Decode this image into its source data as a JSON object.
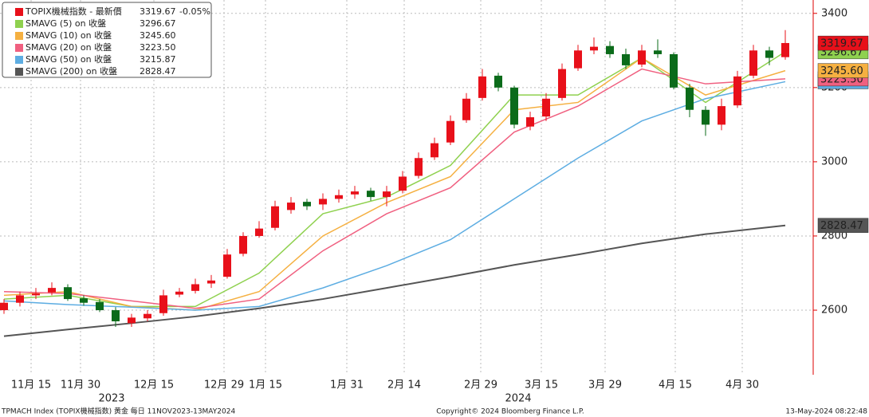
{
  "chart_data": {
    "type": "candlestick",
    "main": {
      "name": "TOPIX機械指数 - 最新價",
      "color": "#e8101a",
      "last": 3319.67,
      "change": "-0.05%"
    },
    "up_color": "#e8101a",
    "down_color": "#0b6b1a",
    "x": [
      0,
      1,
      2,
      3,
      4,
      5,
      6,
      7,
      8,
      9,
      10,
      11,
      12,
      13,
      14,
      15,
      16,
      17,
      18,
      19,
      20,
      21,
      22,
      23,
      24,
      25,
      26,
      27,
      28,
      29,
      30,
      31,
      32,
      33,
      34,
      35,
      36,
      37,
      38,
      39,
      40,
      41,
      42,
      43,
      44,
      45,
      46,
      47,
      48,
      49
    ],
    "open": [
      2600,
      2620,
      2640,
      2648,
      2662,
      2632,
      2622,
      2600,
      2565,
      2578,
      2592,
      2642,
      2652,
      2672,
      2690,
      2752,
      2800,
      2822,
      2870,
      2892,
      2885,
      2900,
      2912,
      2922,
      2905,
      2922,
      2962,
      3012,
      3052,
      3112,
      3172,
      3232,
      3200,
      3095,
      3122,
      3172,
      3252,
      3300,
      3312,
      3290,
      3262,
      3300,
      3290,
      3200,
      3140,
      3100,
      3152,
      3232,
      3300,
      3282
    ],
    "high": [
      2630,
      2650,
      2660,
      2675,
      2670,
      2640,
      2630,
      2608,
      2590,
      2600,
      2655,
      2660,
      2685,
      2695,
      2765,
      2810,
      2840,
      2895,
      2905,
      2900,
      2915,
      2925,
      2935,
      2930,
      2935,
      2975,
      3025,
      3065,
      3125,
      3185,
      3250,
      3240,
      3205,
      3135,
      3185,
      3265,
      3315,
      3335,
      3325,
      3305,
      3315,
      3330,
      3295,
      3210,
      3150,
      3170,
      3245,
      3315,
      3310,
      3355
    ],
    "low": [
      2590,
      2610,
      2630,
      2640,
      2625,
      2612,
      2595,
      2555,
      2555,
      2570,
      2585,
      2635,
      2645,
      2660,
      2685,
      2745,
      2795,
      2815,
      2860,
      2870,
      2870,
      2890,
      2900,
      2895,
      2880,
      2915,
      2955,
      3005,
      3045,
      3105,
      3165,
      3190,
      3090,
      3085,
      3110,
      3165,
      3245,
      3290,
      3280,
      3250,
      3255,
      3280,
      3195,
      3120,
      3070,
      3085,
      3145,
      3225,
      3260,
      3275
    ],
    "close": [
      2620,
      2640,
      2645,
      2660,
      2630,
      2620,
      2600,
      2570,
      2580,
      2590,
      2640,
      2650,
      2670,
      2680,
      2750,
      2800,
      2820,
      2880,
      2890,
      2880,
      2900,
      2910,
      2920,
      2905,
      2920,
      2960,
      3010,
      3050,
      3110,
      3170,
      3230,
      3200,
      3100,
      3120,
      3170,
      3250,
      3300,
      3310,
      3290,
      3260,
      3300,
      3290,
      3200,
      3140,
      3100,
      3150,
      3230,
      3300,
      3280,
      3320
    ],
    "series": [
      {
        "name": "SMAVG (5)  on 收盤",
        "color": "#8fd14f",
        "last": 3296.67,
        "last_label": "3296.67",
        "x": [
          0,
          4,
          8,
          12,
          16,
          20,
          24,
          28,
          32,
          36,
          40,
          44,
          49
        ],
        "values": [
          2630,
          2640,
          2610,
          2610,
          2700,
          2860,
          2905,
          2990,
          3180,
          3180,
          3280,
          3160,
          3296.67
        ]
      },
      {
        "name": "SMAVG (10)  on 收盤",
        "color": "#f5b041",
        "last": 3245.6,
        "last_label": "3245.60",
        "x": [
          0,
          4,
          8,
          12,
          16,
          20,
          24,
          28,
          32,
          36,
          40,
          44,
          49
        ],
        "values": [
          2640,
          2650,
          2610,
          2600,
          2650,
          2800,
          2890,
          2960,
          3140,
          3160,
          3280,
          3180,
          3245.6
        ]
      },
      {
        "name": "SMAVG (20)  on 收盤",
        "color": "#f06080",
        "last": 3223.5,
        "last_label": "3223.50",
        "x": [
          0,
          4,
          8,
          12,
          16,
          20,
          24,
          28,
          32,
          36,
          40,
          44,
          49
        ],
        "values": [
          2650,
          2645,
          2625,
          2605,
          2630,
          2760,
          2860,
          2930,
          3080,
          3150,
          3250,
          3210,
          3223.5
        ]
      },
      {
        "name": "SMAVG (50)  on 收盤",
        "color": "#5dade2",
        "last": 3215.87,
        "last_label": "3215.87",
        "x": [
          0,
          4,
          8,
          12,
          16,
          20,
          24,
          28,
          32,
          36,
          40,
          44,
          49
        ],
        "values": [
          2625,
          2615,
          2608,
          2600,
          2610,
          2660,
          2720,
          2790,
          2900,
          3010,
          3110,
          3170,
          3215.87
        ]
      },
      {
        "name": "SMAVG (200)  on 收盤",
        "color": "#555555",
        "last": 2828.47,
        "last_label": "2828.47",
        "x": [
          0,
          4,
          8,
          12,
          16,
          20,
          24,
          28,
          32,
          36,
          40,
          44,
          49
        ],
        "values": [
          2530,
          2548,
          2565,
          2583,
          2605,
          2630,
          2660,
          2690,
          2722,
          2750,
          2780,
          2805,
          2828.47
        ]
      }
    ],
    "xlim": [
      -0.25,
      50.25
    ],
    "xticks": [
      {
        "value": 1.7,
        "label": "11月 15"
      },
      {
        "value": 4.8,
        "label": "11月 30"
      },
      {
        "value": 9.4,
        "label": "12月 15"
      },
      {
        "value": 13.8,
        "label": "12月 29"
      },
      {
        "value": 16.4,
        "label": "1月 15"
      },
      {
        "value": 21.5,
        "label": "1月 31"
      },
      {
        "value": 25.1,
        "label": "2月 14"
      },
      {
        "value": 29.9,
        "label": "2月 29"
      },
      {
        "value": 33.7,
        "label": "3月 15"
      },
      {
        "value": 37.7,
        "label": "3月 29"
      },
      {
        "value": 42.1,
        "label": "4月 15"
      },
      {
        "value": 46.3,
        "label": "4月 30"
      }
    ],
    "year_labels": [
      {
        "value": 6.75,
        "label": "2023"
      },
      {
        "value": 32.25,
        "label": "2024"
      }
    ],
    "ylim": [
      2426,
      3436
    ],
    "yticks": [
      2600,
      2800,
      3000,
      3200,
      3400
    ],
    "grid": true,
    "footer_left": "TPMACH Index (TOPIX機械指数) 黄金  每日 11NOV2023-13MAY2024",
    "footer_center": "Copyright© 2024 Bloomberg Finance L.P.",
    "footer_right": "13-May-2024 08:22:48"
  }
}
